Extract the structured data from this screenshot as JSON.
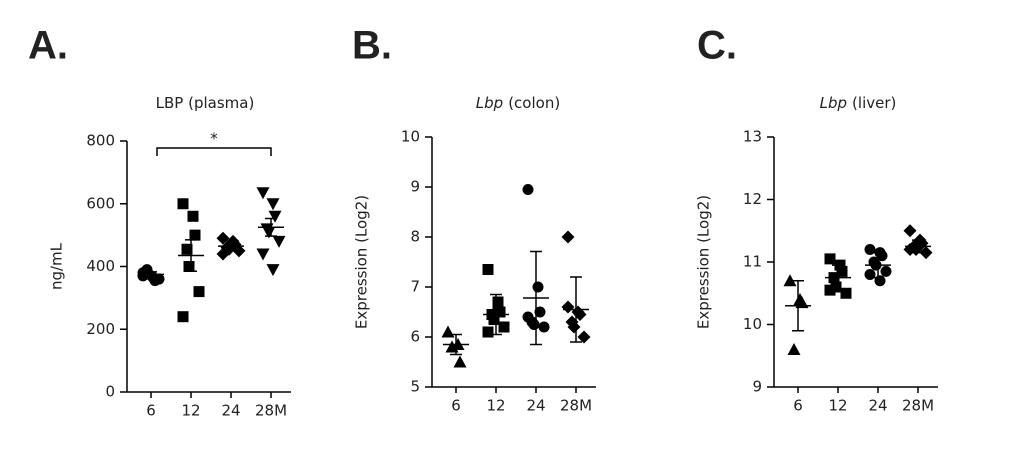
{
  "chart_data": [
    {
      "type": "dot",
      "panel": "A.",
      "title": "LBP (plasma)",
      "ylabel": "ng/mL",
      "categories": [
        "6",
        "12",
        "24",
        "28M"
      ],
      "markers": [
        "circle",
        "square",
        "diamond",
        "triangle-down"
      ],
      "points": [
        [
          380,
          365,
          355,
          390,
          375,
          360,
          370
        ],
        [
          600,
          560,
          500,
          455,
          400,
          320,
          240
        ],
        [
          490,
          480,
          470,
          460,
          455,
          450,
          440,
          470
        ],
        [
          635,
          600,
          560,
          520,
          510,
          480,
          440,
          390
        ]
      ],
      "means": [
        375,
        435,
        465,
        525
      ],
      "errors": [
        8,
        50,
        8,
        28
      ],
      "ylim": [
        0,
        800
      ],
      "yticks": [
        0,
        200,
        400,
        600,
        800
      ],
      "annotation": "*",
      "color": "#000000"
    },
    {
      "type": "dot",
      "panel": "B.",
      "gene": "Lbp",
      "title": "(colon)",
      "ylabel": "Expression (Log2)",
      "categories": [
        "6",
        "12",
        "24",
        "28M"
      ],
      "markers": [
        "triangle-up",
        "square",
        "circle",
        "diamond"
      ],
      "points": [
        [
          6.1,
          5.85,
          5.5,
          5.8
        ],
        [
          7.35,
          6.7,
          6.5,
          6.45,
          6.35,
          6.2,
          6.1,
          6.55
        ],
        [
          8.95,
          7.0,
          6.5,
          6.3,
          6.25,
          6.2,
          6.4
        ],
        [
          8.0,
          6.5,
          6.45,
          6.3,
          6.2,
          6.0,
          6.6
        ]
      ],
      "means": [
        5.85,
        6.45,
        6.78,
        6.55
      ],
      "errors": [
        0.2,
        0.4,
        0.93,
        0.65
      ],
      "ylim": [
        5,
        10
      ],
      "yticks": [
        5,
        6,
        7,
        8,
        9,
        10
      ],
      "color": "#000000"
    },
    {
      "type": "dot",
      "panel": "C.",
      "gene": "Lbp",
      "title": "(liver)",
      "ylabel": "Expression (Log2)",
      "categories": [
        "6",
        "12",
        "24",
        "28M"
      ],
      "markers": [
        "triangle-up",
        "square",
        "circle",
        "diamond"
      ],
      "points": [
        [
          10.7,
          10.4,
          10.35,
          9.6
        ],
        [
          11.05,
          10.95,
          10.85,
          10.75,
          10.6,
          10.5,
          10.55
        ],
        [
          11.2,
          11.15,
          11.1,
          11.0,
          10.95,
          10.85,
          10.8,
          10.7
        ],
        [
          11.5,
          11.35,
          11.3,
          11.25,
          11.2,
          11.15,
          11.2
        ]
      ],
      "means": [
        10.3,
        10.75,
        10.95,
        11.25
      ],
      "errors": [
        0.4,
        0.2,
        0.2,
        0.1
      ],
      "ylim": [
        9,
        13
      ],
      "yticks": [
        9,
        10,
        11,
        12,
        13
      ],
      "color": "#000000"
    }
  ]
}
